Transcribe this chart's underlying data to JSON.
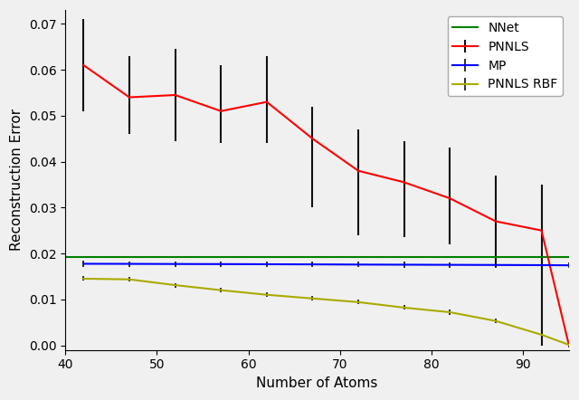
{
  "title": "",
  "xlabel": "Number of Atoms",
  "ylabel": "Reconstruction Error",
  "xlim": [
    40,
    95
  ],
  "ylim": [
    -0.001,
    0.073
  ],
  "x_atoms": [
    42,
    47,
    52,
    57,
    62,
    67,
    72,
    77,
    82,
    87,
    92,
    95
  ],
  "pnnls_mean": [
    0.061,
    0.054,
    0.0545,
    0.051,
    0.053,
    0.045,
    0.038,
    0.0355,
    0.032,
    0.027,
    0.025,
    0.0
  ],
  "pnnls_err_low": [
    0.01,
    0.008,
    0.01,
    0.007,
    0.009,
    0.015,
    0.014,
    0.012,
    0.01,
    0.01,
    0.025,
    0.0
  ],
  "pnnls_err_high": [
    0.01,
    0.009,
    0.01,
    0.01,
    0.01,
    0.007,
    0.009,
    0.009,
    0.011,
    0.01,
    0.01,
    0.0
  ],
  "mp_mean": [
    0.01775,
    0.01773,
    0.0177,
    0.01768,
    0.01765,
    0.01762,
    0.01758,
    0.01755,
    0.01752,
    0.01749,
    0.01745,
    0.01742
  ],
  "mp_err": [
    0.0006,
    0.0006,
    0.0006,
    0.0006,
    0.0006,
    0.0006,
    0.0006,
    0.0006,
    0.0006,
    0.0006,
    0.0006,
    0.0006
  ],
  "pnnls_rbf_mean": [
    0.0145,
    0.01435,
    0.0131,
    0.012,
    0.011,
    0.0102,
    0.0094,
    0.0082,
    0.0072,
    0.0053,
    0.0023,
    0.0001
  ],
  "pnnls_rbf_err": [
    0.0005,
    0.0005,
    0.0005,
    0.0005,
    0.0005,
    0.0005,
    0.0005,
    0.0005,
    0.0005,
    0.0005,
    0.0005,
    0.0005
  ],
  "nnet_mean": 0.0193,
  "pnnls_color": "#ff0000",
  "mp_color": "#0000ff",
  "pnnls_rbf_color": "#aaaa00",
  "nnet_color": "#008000",
  "errorbar_color": "#111111",
  "linewidth": 1.5,
  "figsize": [
    6.4,
    4.42
  ],
  "dpi": 100,
  "xticks": [
    40,
    50,
    60,
    70,
    80,
    90
  ],
  "yticks": [
    0.0,
    0.01,
    0.02,
    0.03,
    0.04,
    0.05,
    0.06,
    0.07
  ]
}
